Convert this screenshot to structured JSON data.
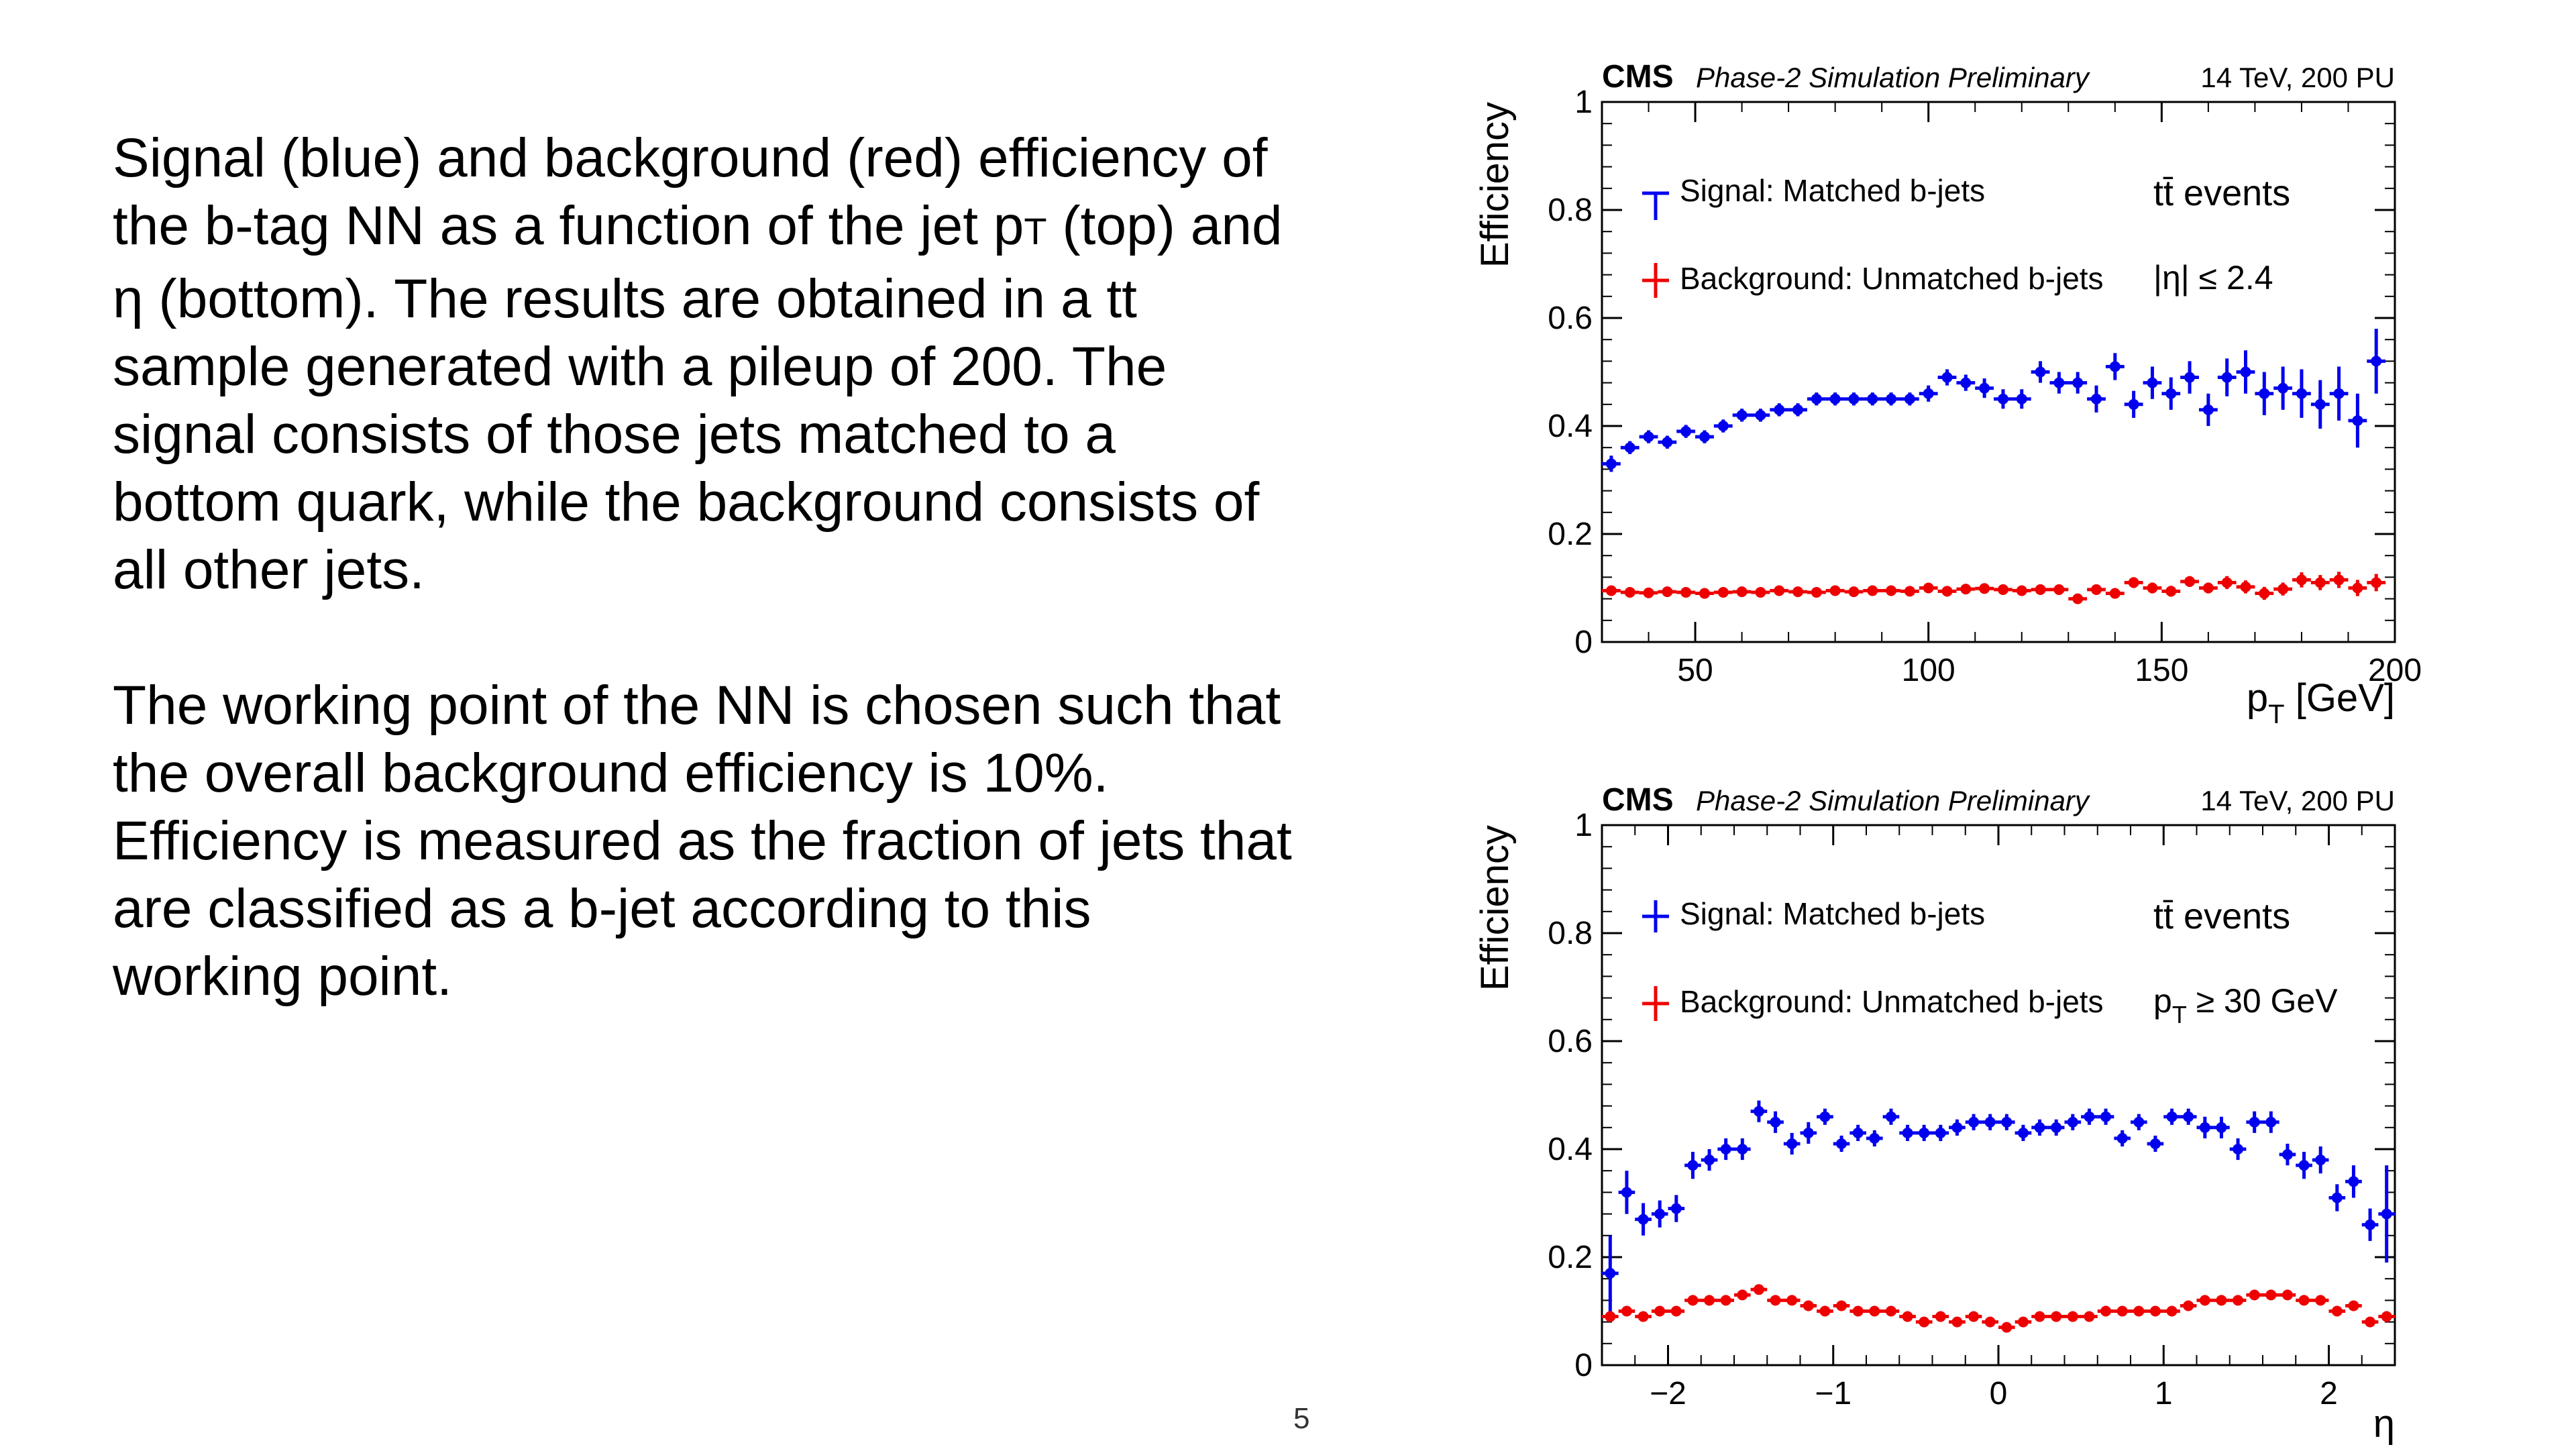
{
  "slide": {
    "paragraph1": {
      "before_sub": "Signal (blue) and background (red) efficiency of the b-tag NN as a function of the jet p",
      "sub": "T",
      "after_sub": " (top) and η (bottom). The results are obtained in a tt sample generated with a pileup of 200. The signal consists of those jets matched to a bottom quark, while the background consists of all other jets."
    },
    "paragraph2": "The working point of the NN is chosen such that the overall background efficiency is 10%. Efficiency is measured as the fraction of jets that are classified as a b-jet according to this working point.",
    "page_number": "5"
  },
  "colors": {
    "signal": "#0000ee",
    "background": "#ee0000",
    "axis": "#000000"
  },
  "chart_data": [
    {
      "type": "scatter",
      "header": {
        "experiment": "CMS",
        "subtitle": "Phase-2 Simulation Preliminary",
        "energy": "14 TeV, 200 PU"
      },
      "xlabel": "p",
      "xlabel_sub": "T",
      "xlabel_unit": " [GeV]",
      "ylabel": "Efficiency",
      "xlim": [
        30,
        200
      ],
      "ylim": [
        0,
        1
      ],
      "xticks": [
        50,
        100,
        150,
        200
      ],
      "yticks": [
        0,
        0.2,
        0.4,
        0.6,
        0.8,
        1
      ],
      "yticklabels": [
        "0",
        "0.2",
        "0.4",
        "0.6",
        "0.8",
        "1"
      ],
      "legend": {
        "signal": "Signal: Matched b-jets",
        "background": "Background: Unmatched b-jets",
        "placement": "top-left"
      },
      "annotations": {
        "line1_main": "t",
        "line1_bar": "t̄",
        "line1_rest": " events",
        "line2": "|η| ≤ 2.4"
      },
      "bin_width": 4,
      "series": [
        {
          "name": "Signal: Matched b-jets",
          "x": [
            32,
            36,
            40,
            44,
            48,
            52,
            56,
            60,
            64,
            68,
            72,
            76,
            80,
            84,
            88,
            92,
            96,
            100,
            104,
            108,
            112,
            116,
            120,
            124,
            128,
            132,
            136,
            140,
            144,
            148,
            152,
            156,
            160,
            164,
            168,
            172,
            176,
            180,
            184,
            188,
            192,
            196
          ],
          "y": [
            0.33,
            0.36,
            0.38,
            0.37,
            0.39,
            0.38,
            0.4,
            0.42,
            0.42,
            0.43,
            0.43,
            0.45,
            0.45,
            0.45,
            0.45,
            0.45,
            0.45,
            0.46,
            0.49,
            0.48,
            0.47,
            0.45,
            0.45,
            0.5,
            0.48,
            0.48,
            0.45,
            0.51,
            0.44,
            0.48,
            0.46,
            0.49,
            0.43,
            0.49,
            0.5,
            0.46,
            0.47,
            0.46,
            0.44,
            0.46,
            0.41,
            0.52
          ],
          "err": [
            0.015,
            0.012,
            0.012,
            0.012,
            0.012,
            0.012,
            0.012,
            0.012,
            0.012,
            0.012,
            0.012,
            0.012,
            0.012,
            0.012,
            0.012,
            0.012,
            0.012,
            0.015,
            0.015,
            0.015,
            0.018,
            0.018,
            0.018,
            0.02,
            0.02,
            0.02,
            0.025,
            0.025,
            0.025,
            0.03,
            0.03,
            0.03,
            0.03,
            0.035,
            0.04,
            0.04,
            0.04,
            0.045,
            0.045,
            0.05,
            0.05,
            0.06
          ]
        },
        {
          "name": "Background: Unmatched b-jets",
          "x": [
            32,
            36,
            40,
            44,
            48,
            52,
            56,
            60,
            64,
            68,
            72,
            76,
            80,
            84,
            88,
            92,
            96,
            100,
            104,
            108,
            112,
            116,
            120,
            124,
            128,
            132,
            136,
            140,
            144,
            148,
            152,
            156,
            160,
            164,
            168,
            172,
            176,
            180,
            184,
            188,
            192,
            196
          ],
          "y": [
            0.095,
            0.092,
            0.091,
            0.093,
            0.092,
            0.09,
            0.092,
            0.093,
            0.092,
            0.095,
            0.093,
            0.092,
            0.095,
            0.093,
            0.095,
            0.095,
            0.094,
            0.1,
            0.094,
            0.098,
            0.099,
            0.097,
            0.095,
            0.097,
            0.097,
            0.08,
            0.097,
            0.09,
            0.11,
            0.1,
            0.094,
            0.112,
            0.1,
            0.11,
            0.102,
            0.09,
            0.098,
            0.115,
            0.11,
            0.115,
            0.1,
            0.11
          ],
          "err": [
            0.006,
            0.005,
            0.005,
            0.005,
            0.005,
            0.005,
            0.005,
            0.005,
            0.005,
            0.005,
            0.005,
            0.005,
            0.005,
            0.005,
            0.005,
            0.005,
            0.005,
            0.006,
            0.006,
            0.006,
            0.006,
            0.006,
            0.007,
            0.007,
            0.007,
            0.008,
            0.008,
            0.008,
            0.01,
            0.01,
            0.01,
            0.01,
            0.01,
            0.012,
            0.012,
            0.012,
            0.012,
            0.014,
            0.014,
            0.015,
            0.015,
            0.016
          ]
        }
      ]
    },
    {
      "type": "scatter",
      "header": {
        "experiment": "CMS",
        "subtitle": "Phase-2 Simulation Preliminary",
        "energy": "14 TeV, 200 PU"
      },
      "xlabel": "η",
      "ylabel": "Efficiency",
      "xlim": [
        -2.4,
        2.4
      ],
      "ylim": [
        0,
        1
      ],
      "xticks": [
        -2,
        -1,
        0,
        1,
        2
      ],
      "xticklabels": [
        "−2",
        "−1",
        "0",
        "1",
        "2"
      ],
      "yticks": [
        0,
        0.2,
        0.4,
        0.6,
        0.8,
        1
      ],
      "yticklabels": [
        "0",
        "0.2",
        "0.4",
        "0.6",
        "0.8",
        "1"
      ],
      "legend": {
        "signal": "Signal: Matched b-jets",
        "background": "Background: Unmatched b-jets",
        "placement": "top-left"
      },
      "annotations": {
        "line1_main": "t",
        "line1_bar": "t̄",
        "line1_rest": " events",
        "line2_main": "p",
        "line2_sub": "T",
        "line2_rest": " ≥ 30 GeV"
      },
      "bin_width": 0.1,
      "series": [
        {
          "name": "Signal: Matched b-jets",
          "x": [
            -2.35,
            -2.25,
            -2.15,
            -2.05,
            -1.95,
            -1.85,
            -1.75,
            -1.65,
            -1.55,
            -1.45,
            -1.35,
            -1.25,
            -1.15,
            -1.05,
            -0.95,
            -0.85,
            -0.75,
            -0.65,
            -0.55,
            -0.45,
            -0.35,
            -0.25,
            -0.15,
            -0.05,
            0.05,
            0.15,
            0.25,
            0.35,
            0.45,
            0.55,
            0.65,
            0.75,
            0.85,
            0.95,
            1.05,
            1.15,
            1.25,
            1.35,
            1.45,
            1.55,
            1.65,
            1.75,
            1.85,
            1.95,
            2.05,
            2.15,
            2.25,
            2.35
          ],
          "y": [
            0.17,
            0.32,
            0.27,
            0.28,
            0.29,
            0.37,
            0.38,
            0.4,
            0.4,
            0.47,
            0.45,
            0.41,
            0.43,
            0.46,
            0.41,
            0.43,
            0.42,
            0.46,
            0.43,
            0.43,
            0.43,
            0.44,
            0.45,
            0.45,
            0.45,
            0.43,
            0.44,
            0.44,
            0.45,
            0.46,
            0.46,
            0.42,
            0.45,
            0.41,
            0.46,
            0.46,
            0.44,
            0.44,
            0.4,
            0.45,
            0.45,
            0.39,
            0.37,
            0.38,
            0.31,
            0.34,
            0.26,
            0.28
          ],
          "err": [
            0.07,
            0.04,
            0.03,
            0.025,
            0.025,
            0.025,
            0.02,
            0.02,
            0.02,
            0.02,
            0.02,
            0.02,
            0.02,
            0.015,
            0.015,
            0.015,
            0.015,
            0.015,
            0.015,
            0.015,
            0.015,
            0.015,
            0.015,
            0.015,
            0.015,
            0.015,
            0.015,
            0.015,
            0.015,
            0.015,
            0.015,
            0.015,
            0.015,
            0.015,
            0.015,
            0.015,
            0.02,
            0.02,
            0.02,
            0.02,
            0.02,
            0.02,
            0.025,
            0.025,
            0.025,
            0.03,
            0.03,
            0.09
          ]
        },
        {
          "name": "Background: Unmatched b-jets",
          "x": [
            -2.35,
            -2.25,
            -2.15,
            -2.05,
            -1.95,
            -1.85,
            -1.75,
            -1.65,
            -1.55,
            -1.45,
            -1.35,
            -1.25,
            -1.15,
            -1.05,
            -0.95,
            -0.85,
            -0.75,
            -0.65,
            -0.55,
            -0.45,
            -0.35,
            -0.25,
            -0.15,
            -0.05,
            0.05,
            0.15,
            0.25,
            0.35,
            0.45,
            0.55,
            0.65,
            0.75,
            0.85,
            0.95,
            1.05,
            1.15,
            1.25,
            1.35,
            1.45,
            1.55,
            1.65,
            1.75,
            1.85,
            1.95,
            2.05,
            2.15,
            2.25,
            2.35
          ],
          "y": [
            0.09,
            0.1,
            0.09,
            0.1,
            0.1,
            0.12,
            0.12,
            0.12,
            0.13,
            0.14,
            0.12,
            0.12,
            0.11,
            0.1,
            0.11,
            0.1,
            0.1,
            0.1,
            0.09,
            0.08,
            0.09,
            0.08,
            0.09,
            0.08,
            0.07,
            0.08,
            0.09,
            0.09,
            0.09,
            0.09,
            0.1,
            0.1,
            0.1,
            0.1,
            0.1,
            0.11,
            0.12,
            0.12,
            0.12,
            0.13,
            0.13,
            0.13,
            0.12,
            0.12,
            0.1,
            0.11,
            0.08,
            0.09
          ],
          "err": [
            0.01,
            0.008,
            0.008,
            0.007,
            0.007,
            0.006,
            0.006,
            0.006,
            0.006,
            0.006,
            0.005,
            0.005,
            0.005,
            0.005,
            0.005,
            0.005,
            0.005,
            0.005,
            0.005,
            0.005,
            0.005,
            0.005,
            0.005,
            0.005,
            0.005,
            0.005,
            0.005,
            0.005,
            0.005,
            0.005,
            0.005,
            0.005,
            0.005,
            0.005,
            0.005,
            0.005,
            0.005,
            0.006,
            0.006,
            0.006,
            0.006,
            0.006,
            0.007,
            0.007,
            0.007,
            0.008,
            0.008,
            0.01
          ]
        }
      ]
    }
  ]
}
